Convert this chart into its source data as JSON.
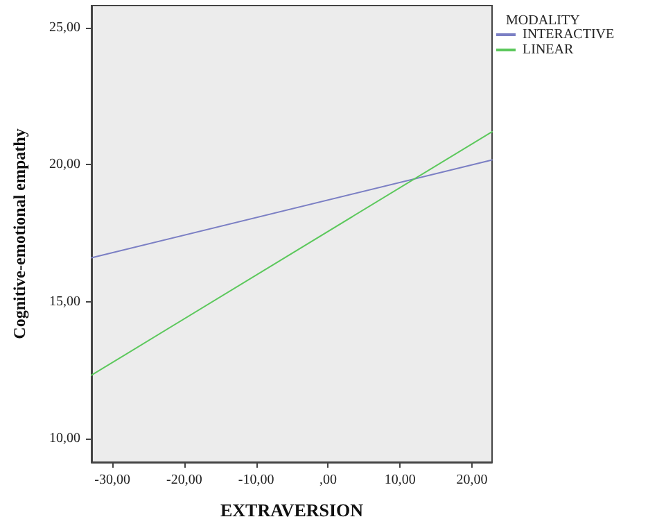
{
  "chart_data": {
    "type": "line",
    "xlabel": "EXTRAVERSION",
    "ylabel": "Cognitive-emotional empathy",
    "legend_title": "MODALITY",
    "series": [
      {
        "name": "INTERACTIVE",
        "color": "#7b7fc4",
        "values": [
          16.6,
          20.17
        ]
      },
      {
        "name": "LINEAR",
        "color": "#5cc85c",
        "values": [
          12.32,
          21.2
        ]
      }
    ],
    "x": [
      -32.9,
      22.8
    ],
    "xlim": [
      -32.9,
      22.8
    ],
    "xticks": [
      {
        "value": -30,
        "label": "-30,00"
      },
      {
        "value": -20,
        "label": "-20,00"
      },
      {
        "value": -10,
        "label": "-10,00"
      },
      {
        "value": 0,
        "label": ",00"
      },
      {
        "value": 10,
        "label": "10,00"
      },
      {
        "value": 20,
        "label": "20,00"
      }
    ],
    "ylim": [
      9.15,
      25.8
    ],
    "yticks": [
      {
        "value": 10,
        "label": "10,00"
      },
      {
        "value": 15,
        "label": "15,00"
      },
      {
        "value": 20,
        "label": "20,00"
      },
      {
        "value": 25,
        "label": "25,00"
      }
    ],
    "grid": false,
    "legend": "top right",
    "marker": "none",
    "line_style": "solid"
  }
}
